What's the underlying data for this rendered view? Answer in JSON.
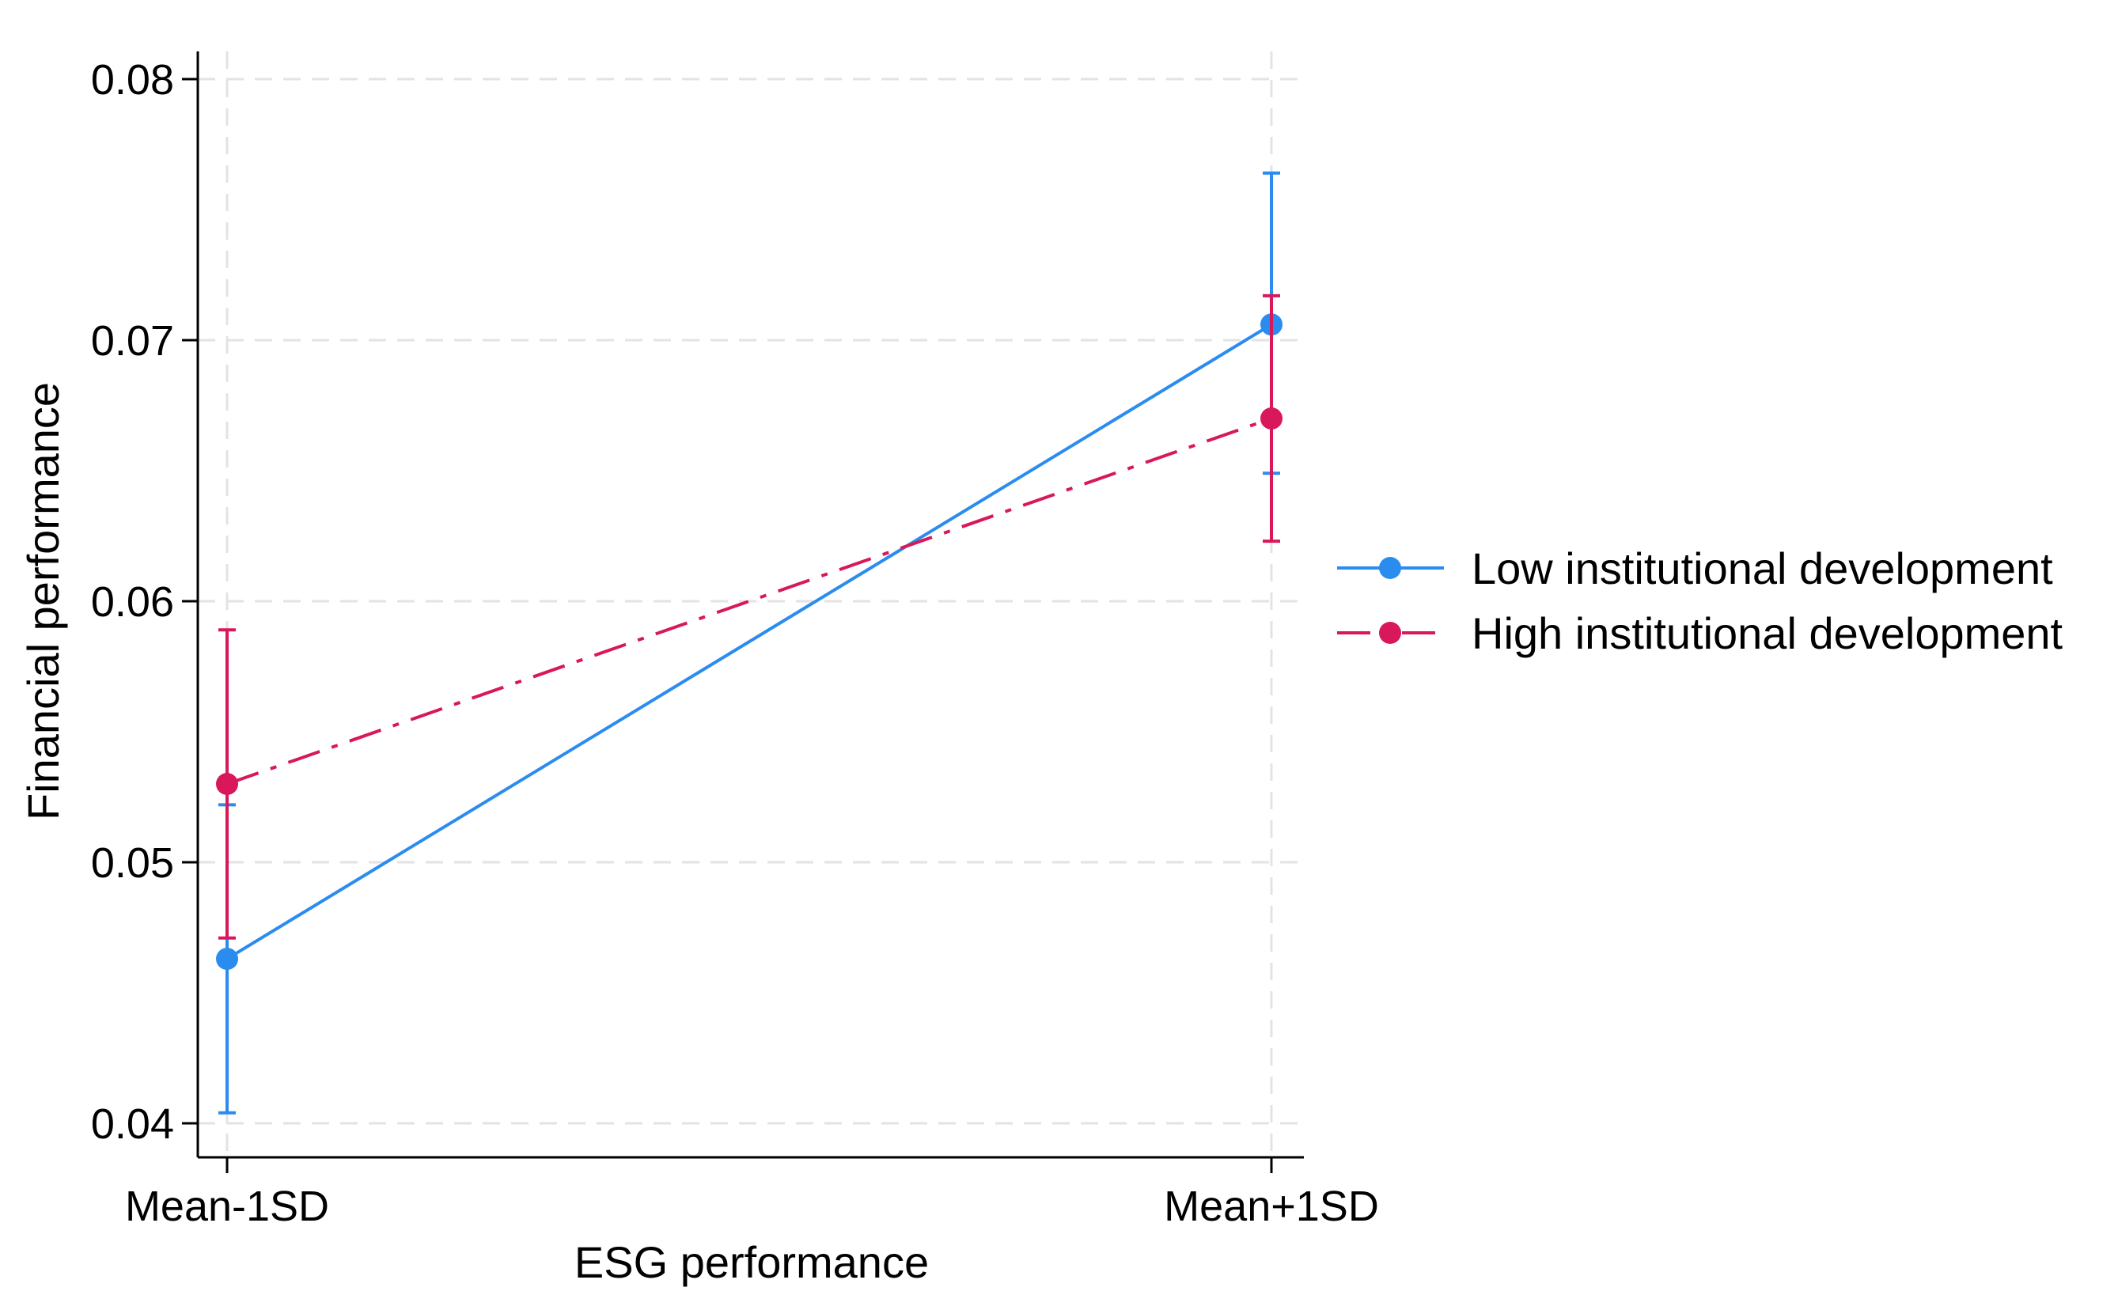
{
  "chart_data": {
    "type": "line",
    "title": "",
    "xlabel": "ESG performance",
    "ylabel": "Financial performance",
    "categories": [
      "Mean-1SD",
      "Mean+1SD"
    ],
    "ylim": [
      0.04,
      0.08
    ],
    "yticks": [
      0.04,
      0.05,
      0.06,
      0.07,
      0.08
    ],
    "ytick_labels": [
      "0.04",
      "0.05",
      "0.06",
      "0.07",
      "0.08"
    ],
    "grid": true,
    "legend_position": "right",
    "series": [
      {
        "name": "Low institutional development",
        "color": "#2b8cf0",
        "line_style": "solid",
        "values": [
          0.0463,
          0.0706
        ],
        "ci_low": [
          0.0404,
          0.0649
        ],
        "ci_high": [
          0.0522,
          0.0764
        ]
      },
      {
        "name": "High institutional development",
        "color": "#d8185a",
        "line_style": "dash-dot",
        "values": [
          0.053,
          0.067
        ],
        "ci_low": [
          0.0471,
          0.0623
        ],
        "ci_high": [
          0.0589,
          0.0717
        ]
      }
    ]
  }
}
